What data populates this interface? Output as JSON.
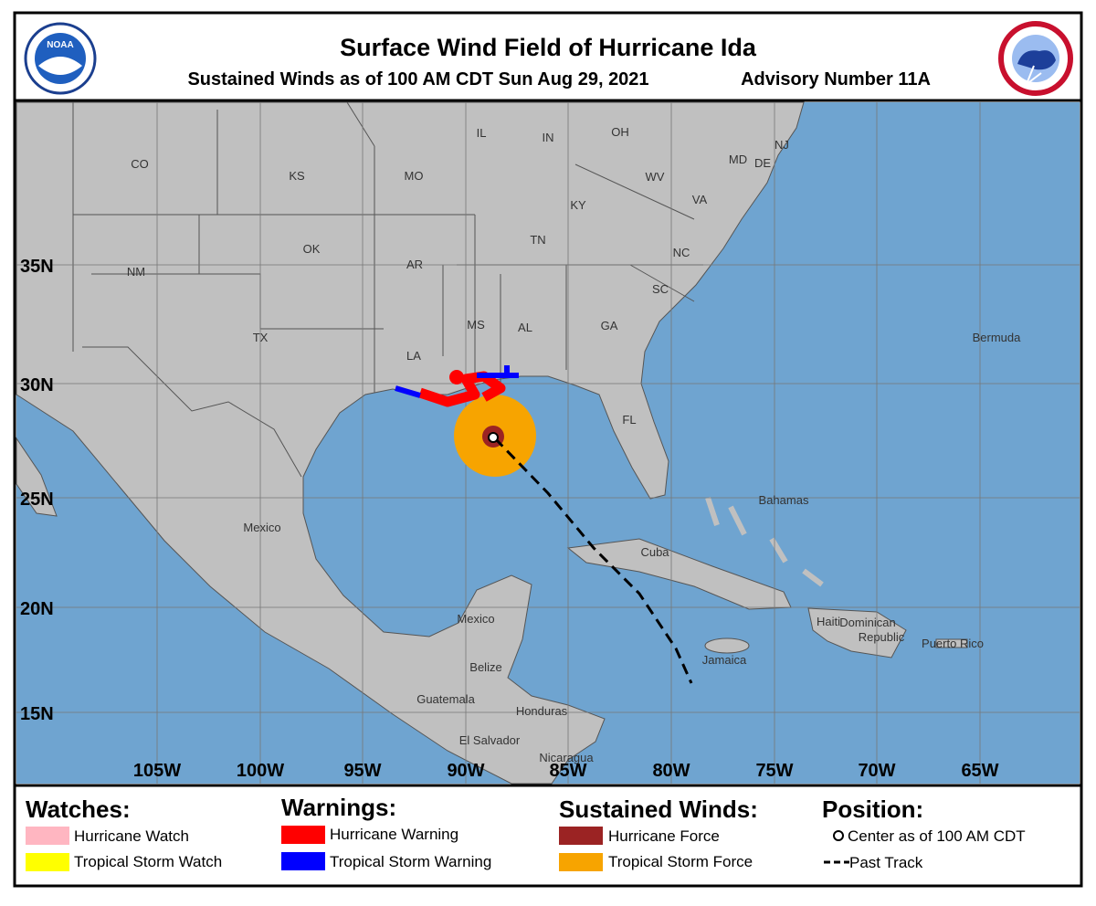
{
  "header": {
    "title": "Surface Wind Field of Hurricane Ida",
    "subtitle": "Sustained Winds as of 100 AM CDT Sun Aug 29, 2021",
    "advisory": "Advisory Number 11A",
    "left_logo": "NOAA"
  },
  "map": {
    "latitude_labels": [
      "35N",
      "30N",
      "25N",
      "20N",
      "15N"
    ],
    "longitude_labels": [
      "105W",
      "100W",
      "95W",
      "90W",
      "85W",
      "80W",
      "75W",
      "70W",
      "65W"
    ],
    "place_labels": [
      "CO",
      "KS",
      "MO",
      "IL",
      "IN",
      "OH",
      "WV",
      "VA",
      "KY",
      "MD",
      "DE",
      "NJ",
      "OK",
      "TN",
      "NC",
      "AR",
      "NM",
      "SC",
      "MS",
      "AL",
      "GA",
      "TX",
      "LA",
      "FL",
      "Bermuda",
      "Bahamas",
      "Mexico",
      "Cuba",
      "Mexico",
      "Haiti",
      "Dominican",
      "Republic",
      "Puerto Rico",
      "Jamaica",
      "Belize",
      "Guatemala",
      "Honduras",
      "El Salvador",
      "Nicaragua"
    ]
  },
  "legend": {
    "watches": {
      "title": "Watches:",
      "items": [
        "Hurricane Watch",
        "Tropical Storm Watch"
      ]
    },
    "warnings": {
      "title": "Warnings:",
      "items": [
        "Hurricane Warning",
        "Tropical Storm Warning"
      ]
    },
    "winds": {
      "title": "Sustained Winds:",
      "items": [
        "Hurricane Force",
        "Tropical Storm Force"
      ]
    },
    "position": {
      "title": "Position:",
      "items": [
        "Center as of 100 AM CDT",
        "Past Track"
      ]
    }
  }
}
